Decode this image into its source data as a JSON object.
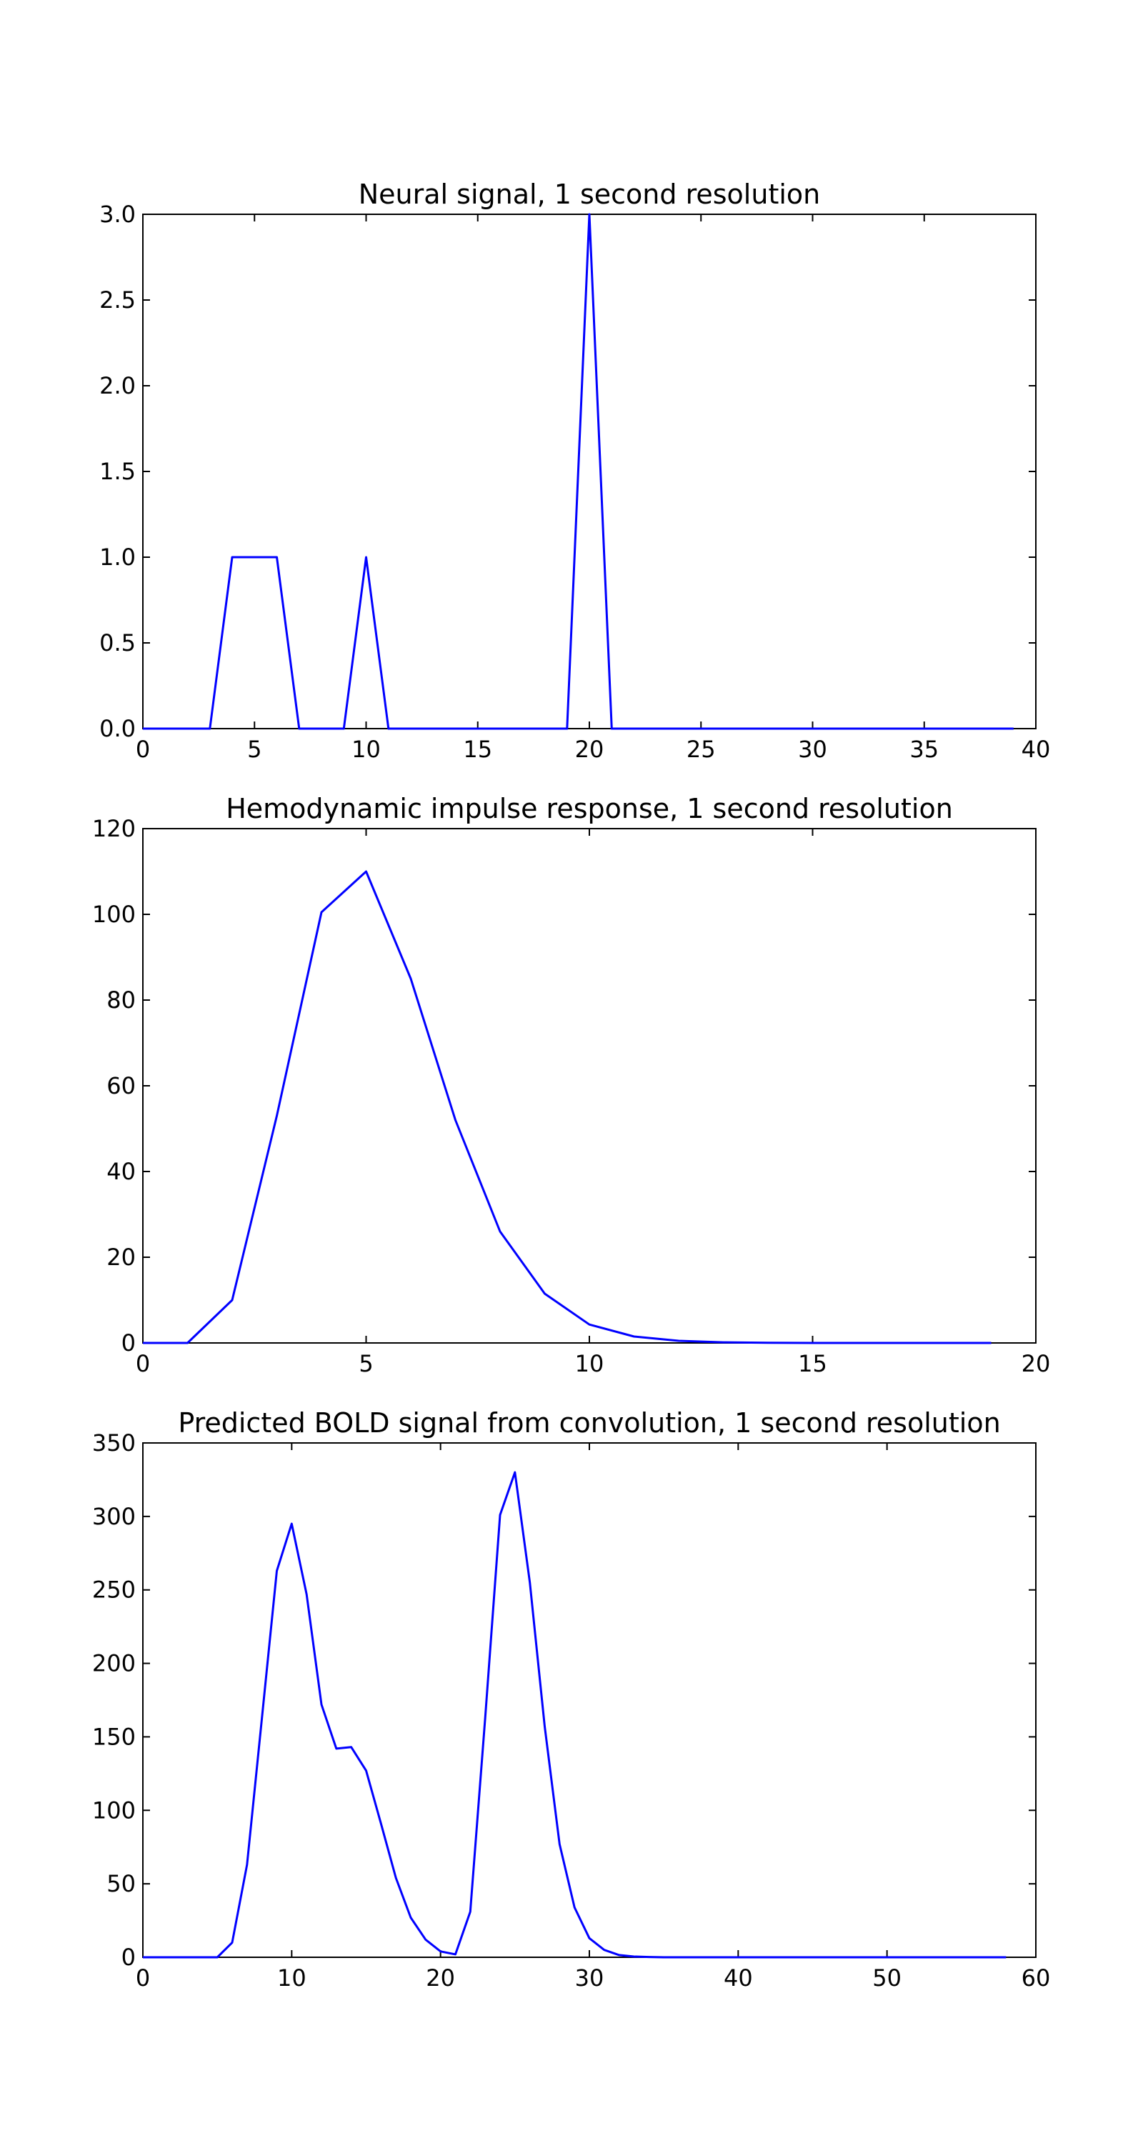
{
  "chart_data": [
    {
      "type": "line",
      "title": "Neural signal, 1 second resolution",
      "xlabel": "",
      "ylabel": "",
      "xlim": [
        0,
        40
      ],
      "ylim": [
        0,
        3
      ],
      "xticks": [
        0,
        5,
        10,
        15,
        20,
        25,
        30,
        35,
        40
      ],
      "yticks": [
        0,
        0.5,
        1,
        1.5,
        2,
        2.5,
        3
      ],
      "xtick_labels": [
        "0",
        "5",
        "10",
        "15",
        "20",
        "25",
        "30",
        "35",
        "40"
      ],
      "ytick_labels": [
        "0.0",
        "0.5",
        "1.0",
        "1.5",
        "2.0",
        "2.5",
        "3.0"
      ],
      "grid": false,
      "series": [
        {
          "color": "#0000ff",
          "x": [
            0,
            1,
            2,
            3,
            4,
            5,
            6,
            7,
            8,
            9,
            10,
            11,
            12,
            13,
            14,
            15,
            16,
            17,
            18,
            19,
            20,
            21,
            22,
            23,
            24,
            25,
            26,
            27,
            28,
            29,
            30,
            31,
            32,
            33,
            34,
            35,
            36,
            37,
            38,
            39
          ],
          "y": [
            0,
            0,
            0,
            0,
            1,
            1,
            1,
            0,
            0,
            0,
            1,
            0,
            0,
            0,
            0,
            0,
            0,
            0,
            0,
            0,
            3,
            0,
            0,
            0,
            0,
            0,
            0,
            0,
            0,
            0,
            0,
            0,
            0,
            0,
            0,
            0,
            0,
            0,
            0,
            0
          ]
        }
      ]
    },
    {
      "type": "line",
      "title": "Hemodynamic impulse response, 1 second resolution",
      "xlabel": "",
      "ylabel": "",
      "xlim": [
        0,
        20
      ],
      "ylim": [
        0,
        120
      ],
      "xticks": [
        0,
        5,
        10,
        15,
        20
      ],
      "yticks": [
        0,
        20,
        40,
        60,
        80,
        100,
        120
      ],
      "xtick_labels": [
        "0",
        "5",
        "10",
        "15",
        "20"
      ],
      "ytick_labels": [
        "0",
        "20",
        "40",
        "60",
        "80",
        "100",
        "120"
      ],
      "grid": false,
      "series": [
        {
          "color": "#0000ff",
          "x": [
            0,
            1,
            2,
            3,
            4,
            5,
            6,
            7,
            8,
            9,
            10,
            11,
            12,
            13,
            14,
            15,
            16,
            17,
            18,
            19
          ],
          "y": [
            0,
            0,
            10,
            53,
            100.5,
            110,
            85,
            52,
            26,
            11.5,
            4.3,
            1.5,
            0.5,
            0.15,
            0.05,
            0,
            0,
            0,
            0,
            0
          ]
        }
      ]
    },
    {
      "type": "line",
      "title": "Predicted BOLD signal from convolution, 1 second resolution",
      "xlabel": "",
      "ylabel": "",
      "xlim": [
        0,
        60
      ],
      "ylim": [
        0,
        350
      ],
      "xticks": [
        0,
        10,
        20,
        30,
        40,
        50,
        60
      ],
      "yticks": [
        0,
        50,
        100,
        150,
        200,
        250,
        300,
        350
      ],
      "xtick_labels": [
        "0",
        "10",
        "20",
        "30",
        "40",
        "50",
        "60"
      ],
      "ytick_labels": [
        "0",
        "50",
        "100",
        "150",
        "200",
        "250",
        "300",
        "350"
      ],
      "grid": false,
      "series": [
        {
          "color": "#0000ff",
          "x": [
            0,
            1,
            2,
            3,
            4,
            5,
            6,
            7,
            8,
            9,
            10,
            11,
            12,
            13,
            14,
            15,
            16,
            17,
            18,
            19,
            20,
            21,
            22,
            23,
            24,
            25,
            26,
            27,
            28,
            29,
            30,
            31,
            32,
            33,
            34,
            35,
            36,
            37,
            38,
            39,
            40,
            41,
            42,
            43,
            44,
            45,
            46,
            47,
            48,
            49,
            50,
            51,
            52,
            53,
            54,
            55,
            56,
            57,
            58
          ],
          "y": [
            0,
            0,
            0,
            0,
            0,
            0,
            10,
            63,
            163,
            263,
            295,
            247,
            172,
            142,
            143,
            127,
            91,
            54,
            27,
            12,
            4,
            2,
            31,
            163,
            301,
            330,
            255,
            157,
            77,
            34,
            13,
            5,
            1.5,
            0.5,
            0.2,
            0,
            0,
            0,
            0,
            0,
            0,
            0,
            0,
            0,
            0,
            0,
            0,
            0,
            0,
            0,
            0,
            0,
            0,
            0,
            0,
            0,
            0,
            0,
            0
          ]
        }
      ]
    }
  ]
}
